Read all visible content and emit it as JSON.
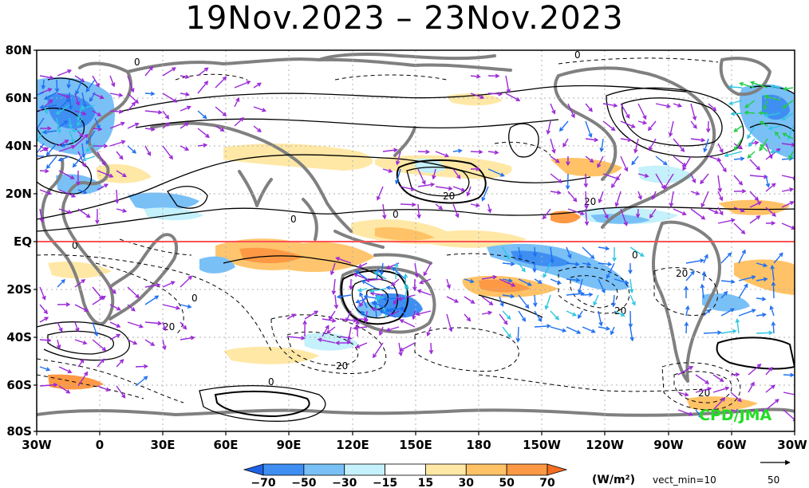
{
  "title": "19Nov.2023 – 23Nov.2023",
  "credit": "CPD/JMA",
  "map": {
    "lat_labels": [
      "80N",
      "60N",
      "40N",
      "20N",
      "EQ",
      "20S",
      "40S",
      "60S",
      "80S"
    ],
    "lon_labels": [
      "30W",
      "0",
      "30E",
      "60E",
      "90E",
      "120E",
      "150E",
      "180",
      "150W",
      "120W",
      "90W",
      "60W",
      "30W"
    ],
    "contour_labels": [
      "0",
      "0",
      "0",
      "0",
      "0",
      "0",
      "0",
      "0",
      "20",
      "20",
      "20",
      "20",
      "20",
      "20",
      "20"
    ],
    "equator_line_color": "#ff5555",
    "coastline_color": "#808080",
    "vector_colors": [
      "#9a28d6",
      "#1f6ff0",
      "#2ec5e0",
      "#22cc44"
    ]
  },
  "colorbar": {
    "ticks": [
      "−70",
      "−50",
      "−30",
      "−15",
      "15",
      "30",
      "50",
      "70"
    ],
    "colors": [
      "#1f62e6",
      "#3f8ff2",
      "#79c0f7",
      "#c4f1fb",
      "#ffffff",
      "#ffe8a6",
      "#ffc266",
      "#fd9944",
      "#f56d21"
    ],
    "unit": "(W/m²)",
    "vector_note": "vect_min=10"
  },
  "reference_vector": {
    "label": "50",
    "arrow": "right-arrow"
  }
}
